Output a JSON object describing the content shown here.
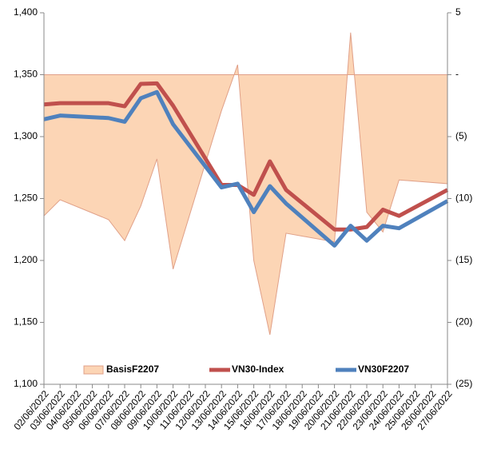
{
  "chart_data": {
    "type": "line",
    "x": [
      "02/06/2022",
      "03/06/2022",
      "06/06/2022",
      "07/06/2022",
      "08/06/2022",
      "09/06/2022",
      "10/06/2022",
      "13/06/2022",
      "14/06/2022",
      "15/06/2022",
      "16/06/2022",
      "17/06/2022",
      "20/06/2022",
      "21/06/2022",
      "22/06/2022",
      "23/06/2022",
      "24/06/2022",
      "27/06/2022"
    ],
    "xlim": [
      "02/06/2022",
      "27/06/2022"
    ],
    "xticks": [
      "02/06/2022",
      "03/06/2022",
      "04/06/2022",
      "05/06/2022",
      "06/06/2022",
      "07/06/2022",
      "08/06/2022",
      "09/06/2022",
      "10/06/2022",
      "11/06/2022",
      "12/06/2022",
      "13/06/2022",
      "14/06/2022",
      "15/06/2022",
      "16/06/2022",
      "17/06/2022",
      "18/06/2022",
      "19/06/2022",
      "20/06/2022",
      "21/06/2022",
      "22/06/2022",
      "23/06/2022",
      "24/06/2022",
      "25/06/2022",
      "26/06/2022",
      "27/06/2022"
    ],
    "series": [
      {
        "name": "BasisF2207",
        "type": "area",
        "axis": "y2",
        "color": "#fcd5b5",
        "edge": "#e0a088",
        "values": [
          -11.4,
          -10.1,
          -11.7,
          -13.4,
          -10.6,
          -6.8,
          -15.7,
          -2.9,
          0.8,
          -15,
          -21,
          -12.8,
          -13.5,
          3.4,
          -11.1,
          -12.7,
          -8.5,
          -8.8
        ]
      },
      {
        "name": "VN30-Index",
        "type": "line",
        "color": "#c0504d",
        "values": [
          1326,
          1327,
          1327,
          1324.5,
          1342.6,
          1343,
          1325,
          1261,
          1261,
          1253,
          1280,
          1257,
          1225,
          1225,
          1227,
          1241,
          1236,
          1257
        ]
      },
      {
        "name": "VN30F2207",
        "type": "line",
        "color": "#4f81bd",
        "values": [
          1314,
          1317,
          1315,
          1312,
          1331,
          1336,
          1310,
          1259,
          1262,
          1239,
          1260,
          1246,
          1212,
          1228,
          1216,
          1228,
          1226,
          1248
        ]
      }
    ],
    "ylim": [
      1100,
      1400
    ],
    "yticks": [
      {
        "value": 1100,
        "label": "1,100"
      },
      {
        "value": 1150,
        "label": "1,150"
      },
      {
        "value": 1200,
        "label": "1,200"
      },
      {
        "value": 1250,
        "label": "1,250"
      },
      {
        "value": 1300,
        "label": "1,300"
      },
      {
        "value": 1350,
        "label": "1,350"
      },
      {
        "value": 1400,
        "label": "1,400"
      }
    ],
    "y2lim": [
      -25,
      5
    ],
    "y2ticks": [
      5,
      {
        "value": 0,
        "label": "-"
      },
      {
        "value": -5,
        "label": "(5)"
      },
      {
        "value": -10,
        "label": "(10)"
      },
      {
        "value": -15,
        "label": "(15)"
      },
      {
        "value": -20,
        "label": "(20)"
      },
      {
        "value": -25,
        "label": "(25)"
      }
    ],
    "grid": false,
    "legend": "bottom"
  }
}
